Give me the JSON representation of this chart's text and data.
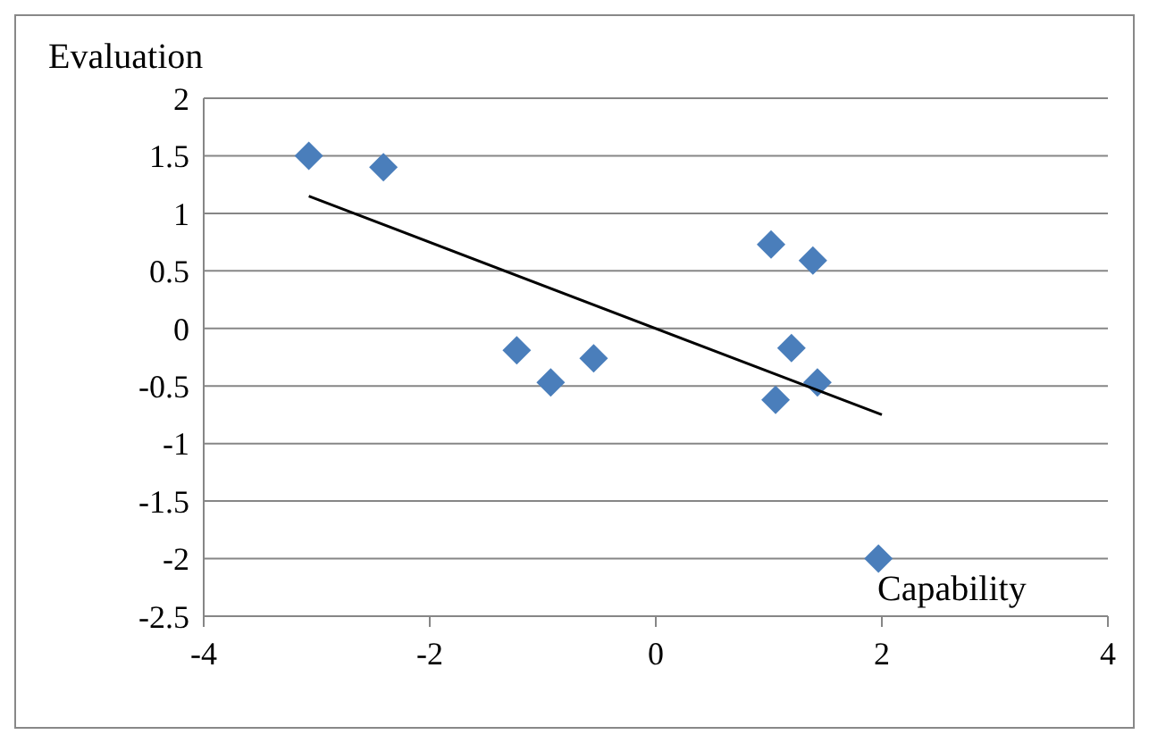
{
  "chart_data": {
    "type": "scatter",
    "xlabel": "Capability",
    "ylabel": "Evaluation",
    "series": [
      {
        "color": "#4a7ebb",
        "marker": "diamond",
        "x": [
          -3.07,
          -2.41,
          -1.23,
          -0.93,
          -0.55,
          1.02,
          1.39,
          1.2,
          1.43,
          1.06,
          1.97
        ],
        "values": [
          1.5,
          1.4,
          -0.19,
          -0.47,
          -0.26,
          0.73,
          0.59,
          -0.17,
          -0.47,
          -0.62,
          -2.0
        ]
      },
      {
        "type": "line",
        "color": "#000000",
        "marker": "none",
        "x": [
          -3.07,
          2.0
        ],
        "values": [
          1.15,
          -0.75
        ]
      }
    ],
    "xlim": [
      -4,
      4
    ],
    "xticks": [
      -4,
      -2,
      0,
      2,
      4
    ],
    "ylim": [
      -2.5,
      2
    ],
    "yticks": [
      -2.5,
      -2,
      -1.5,
      -1,
      -0.5,
      0,
      0.5,
      1,
      1.5,
      2
    ],
    "grid": "y"
  }
}
